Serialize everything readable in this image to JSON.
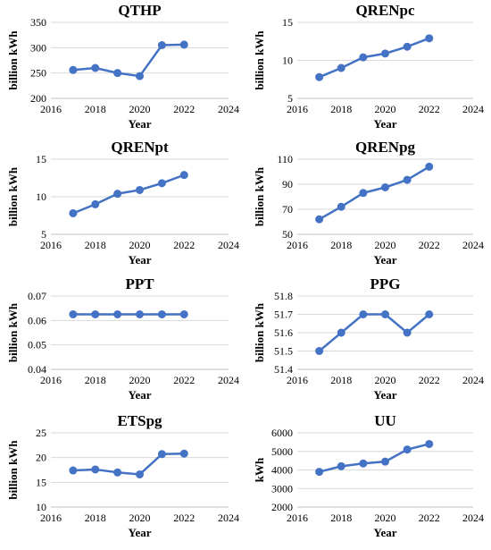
{
  "chart_data": [
    {
      "type": "line",
      "title": "QTHP",
      "xlabel": "Year",
      "ylabel": "billion kWh",
      "xlim": [
        2016,
        2024
      ],
      "xticks": [
        2016,
        2018,
        2020,
        2022,
        2024
      ],
      "ylim": [
        200,
        350
      ],
      "yticks": [
        "200",
        "250",
        "300",
        "350"
      ],
      "series": [
        {
          "x": [
            2017,
            2018,
            2019,
            2020,
            2021,
            2022
          ],
          "values": [
            256,
            260,
            250,
            244,
            305,
            306
          ]
        }
      ]
    },
    {
      "type": "line",
      "title": "QRENpc",
      "xlabel": "Year",
      "ylabel": "billion kWh",
      "xlim": [
        2016,
        2024
      ],
      "xticks": [
        2016,
        2018,
        2020,
        2022,
        2024
      ],
      "ylim": [
        5,
        15
      ],
      "yticks": [
        "5",
        "10",
        "15"
      ],
      "series": [
        {
          "x": [
            2017,
            2018,
            2019,
            2020,
            2021,
            2022
          ],
          "values": [
            7.8,
            9.0,
            10.4,
            10.9,
            11.8,
            12.9
          ]
        }
      ]
    },
    {
      "type": "line",
      "title": "QRENpt",
      "xlabel": "Year",
      "ylabel": "billion kWh",
      "xlim": [
        2016,
        2024
      ],
      "xticks": [
        2016,
        2018,
        2020,
        2022,
        2024
      ],
      "ylim": [
        5,
        15
      ],
      "yticks": [
        "5",
        "10",
        "15"
      ],
      "series": [
        {
          "x": [
            2017,
            2018,
            2019,
            2020,
            2021,
            2022
          ],
          "values": [
            7.8,
            9.0,
            10.4,
            10.9,
            11.8,
            12.9
          ]
        }
      ]
    },
    {
      "type": "line",
      "title": "QRENpg",
      "xlabel": "Year",
      "ylabel": "billion kWh",
      "xlim": [
        2016,
        2024
      ],
      "xticks": [
        2016,
        2018,
        2020,
        2022,
        2024
      ],
      "ylim": [
        50,
        110
      ],
      "yticks": [
        "50",
        "70",
        "90",
        "110"
      ],
      "series": [
        {
          "x": [
            2017,
            2018,
            2019,
            2020,
            2021,
            2022
          ],
          "values": [
            62,
            72,
            83,
            87.5,
            93.5,
            104
          ]
        }
      ]
    },
    {
      "type": "line",
      "title": "PPT",
      "xlabel": "Year",
      "ylabel": "billion kWh",
      "xlim": [
        2016,
        2024
      ],
      "xticks": [
        2016,
        2018,
        2020,
        2022,
        2024
      ],
      "ylim": [
        0.04,
        0.07
      ],
      "yticks": [
        "0.04",
        "0.05",
        "0.06",
        "0.07"
      ],
      "series": [
        {
          "x": [
            2017,
            2018,
            2019,
            2020,
            2021,
            2022
          ],
          "values": [
            0.0625,
            0.0625,
            0.0625,
            0.0625,
            0.0625,
            0.0625
          ]
        }
      ]
    },
    {
      "type": "line",
      "title": "PPG",
      "xlabel": "Year",
      "ylabel": "billion kWh",
      "xlim": [
        2016,
        2024
      ],
      "xticks": [
        2016,
        2018,
        2020,
        2022,
        2024
      ],
      "ylim": [
        51.4,
        51.8
      ],
      "yticks": [
        "51.4",
        "51.5",
        "51.6",
        "51.7",
        "51.8"
      ],
      "series": [
        {
          "x": [
            2017,
            2018,
            2019,
            2020,
            2021,
            2022
          ],
          "values": [
            51.5,
            51.6,
            51.7,
            51.7,
            51.6,
            51.7
          ]
        }
      ]
    },
    {
      "type": "line",
      "title": "ETSpg",
      "xlabel": "Year",
      "ylabel": "billion kWh",
      "xlim": [
        2016,
        2024
      ],
      "xticks": [
        2016,
        2018,
        2020,
        2022,
        2024
      ],
      "ylim": [
        10,
        25
      ],
      "yticks": [
        "10",
        "15",
        "20",
        "25"
      ],
      "series": [
        {
          "x": [
            2017,
            2018,
            2019,
            2020,
            2021,
            2022
          ],
          "values": [
            17.4,
            17.6,
            17.0,
            16.6,
            20.7,
            20.8
          ]
        }
      ]
    },
    {
      "type": "line",
      "title": "UU",
      "xlabel": "Year",
      "ylabel": "kWh",
      "xlim": [
        2016,
        2024
      ],
      "xticks": [
        2016,
        2018,
        2020,
        2022,
        2024
      ],
      "ylim": [
        2000,
        6000
      ],
      "yticks": [
        "2000",
        "3000",
        "4000",
        "5000",
        "6000"
      ],
      "series": [
        {
          "x": [
            2017,
            2018,
            2019,
            2020,
            2021,
            2022
          ],
          "values": [
            3900,
            4200,
            4350,
            4450,
            5100,
            5400
          ]
        }
      ]
    }
  ],
  "style": {
    "series_color": "#4472C4",
    "grid_color": "#d9d9d9",
    "axis_color": "#bfbfbf",
    "grid": "horizontal",
    "legend": "none"
  }
}
